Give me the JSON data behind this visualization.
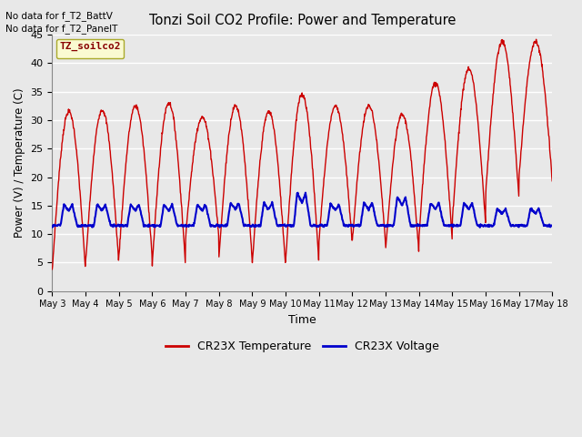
{
  "title": "Tonzi Soil CO2 Profile: Power and Temperature",
  "xlabel": "Time",
  "ylabel": "Power (V) / Temperature (C)",
  "ylim": [
    0,
    45
  ],
  "yticks": [
    0,
    5,
    10,
    15,
    20,
    25,
    30,
    35,
    40,
    45
  ],
  "top_left_text": [
    "No data for f_T2_BattV",
    "No data for f_T2_PanelT"
  ],
  "legend_label_text": "TZ_soilco2",
  "legend_temp": "CR23X Temperature",
  "legend_volt": "CR23X Voltage",
  "temp_color": "#cc0000",
  "volt_color": "#0000cc",
  "bg_color": "#e8e8e8",
  "plot_bg_color": "#e8e8e8",
  "grid_color": "#ffffff",
  "xtick_labels": [
    "May 3",
    "May 4",
    "May 5",
    "May 6",
    "May 7",
    "May 8",
    "May 9",
    "May 10",
    "May 11",
    "May 12",
    "May 13",
    "May 14",
    "May 15",
    "May 16",
    "May 17",
    "May 18"
  ],
  "day_peaks_temp": [
    31.5,
    31.8,
    32.5,
    33.0,
    30.5,
    32.5,
    31.5,
    34.5,
    32.5,
    32.5,
    31.0,
    36.5,
    39.0,
    43.8,
    43.8
  ],
  "day_mins_temp": [
    3.5,
    4.8,
    6.0,
    4.5,
    9.5,
    5.5,
    4.5,
    5.0,
    8.5,
    8.5,
    7.0,
    9.0,
    12.0,
    16.5,
    19.5
  ],
  "day_peaks_volt": [
    15.2,
    15.2,
    15.2,
    15.2,
    15.2,
    15.5,
    15.5,
    17.2,
    15.3,
    15.5,
    16.5,
    15.5,
    15.5,
    14.5,
    14.5
  ],
  "volt_base": 11.5
}
